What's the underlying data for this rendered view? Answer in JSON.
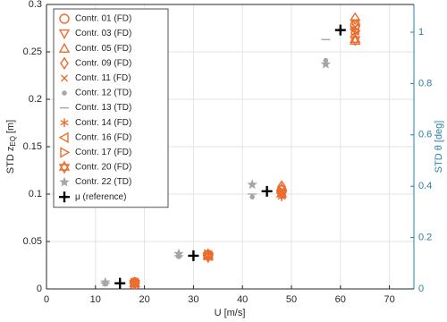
{
  "chart_data": {
    "type": "scatter",
    "x_label": "U [m/s]",
    "y_label": "STD z",
    "y_label_sub": "EQ",
    "y_label_unit": "[m]",
    "y2_label": "STD θ [deg]",
    "xlim": [
      0,
      75
    ],
    "xticks": [
      0,
      10,
      20,
      30,
      40,
      50,
      60,
      70
    ],
    "ylim": [
      0,
      0.3
    ],
    "yticks": [
      0,
      0.05,
      0.1,
      0.15,
      0.2,
      0.25,
      0.3
    ],
    "y2lim": [
      0,
      1.108
    ],
    "y2ticks": [
      0,
      0.2,
      0.4,
      0.6,
      0.8,
      1
    ],
    "y2_color": "#2a7fa3",
    "grid": true,
    "legend": "upper-left",
    "series": [
      {
        "name": "Contr. 01 (FD)",
        "marker": "o",
        "color": "#ec6c2e",
        "x": [
          18,
          33,
          48,
          63
        ],
        "values": [
          0.007,
          0.036,
          0.104,
          0.278
        ]
      },
      {
        "name": "Contr. 03 (FD)",
        "marker": "v",
        "color": "#ec6c2e",
        "x": [
          18,
          33,
          48,
          63
        ],
        "values": [
          0.005,
          0.034,
          0.1,
          0.28
        ]
      },
      {
        "name": "Contr. 05 (FD)",
        "marker": "^",
        "color": "#ec6c2e",
        "x": [
          18,
          33,
          48,
          63
        ],
        "values": [
          0.006,
          0.037,
          0.106,
          0.262
        ]
      },
      {
        "name": "Contr. 09 (FD)",
        "marker": "d",
        "color": "#ec6c2e",
        "x": [
          18,
          33,
          48,
          63
        ],
        "values": [
          0.006,
          0.035,
          0.108,
          0.285
        ]
      },
      {
        "name": "Contr. 11 (FD)",
        "marker": "x",
        "color": "#ec6c2e",
        "x": [
          18,
          33,
          48,
          63
        ],
        "values": [
          0.006,
          0.035,
          0.102,
          0.276
        ]
      },
      {
        "name": "Contr. 12 (TD)",
        "marker": ".",
        "color": "#a6a6a6",
        "x": [
          12,
          27,
          42,
          57
        ],
        "values": [
          0.005,
          0.034,
          0.097,
          0.241
        ]
      },
      {
        "name": "Contr. 13 (TD)",
        "marker": "-",
        "color": "#a6a6a6",
        "x": [
          12,
          27,
          42,
          57
        ],
        "values": [
          0.006,
          0.035,
          0.1,
          0.263
        ]
      },
      {
        "name": "Contr. 14 (FD)",
        "marker": "*",
        "color": "#ec6c2e",
        "x": [
          18,
          33,
          48,
          63
        ],
        "values": [
          0.006,
          0.033,
          0.097,
          0.27
        ]
      },
      {
        "name": "Contr. 16 (FD)",
        "marker": "<",
        "color": "#ec6c2e",
        "x": [
          18,
          33,
          48,
          63
        ],
        "values": [
          0.006,
          0.035,
          0.101,
          0.274
        ]
      },
      {
        "name": "Contr. 17 (FD)",
        "marker": ">",
        "color": "#ec6c2e",
        "x": [
          18,
          33,
          48,
          63
        ],
        "values": [
          0.006,
          0.036,
          0.103,
          0.272
        ]
      },
      {
        "name": "Contr. 20 (FD)",
        "marker": "h",
        "color": "#ec6c2e",
        "x": [
          18,
          33,
          48,
          63
        ],
        "values": [
          0.006,
          0.034,
          0.1,
          0.263
        ]
      },
      {
        "name": "Contr. 22 (TD)",
        "marker": "p",
        "color": "#a6a6a6",
        "x": [
          12,
          27,
          42,
          57
        ],
        "values": [
          0.007,
          0.037,
          0.11,
          0.237
        ]
      },
      {
        "name": "μ (reference)",
        "marker": "+",
        "color": "#000000",
        "x": [
          15,
          30,
          45,
          60
        ],
        "values": [
          0.006,
          0.035,
          0.103,
          0.273
        ]
      }
    ]
  }
}
